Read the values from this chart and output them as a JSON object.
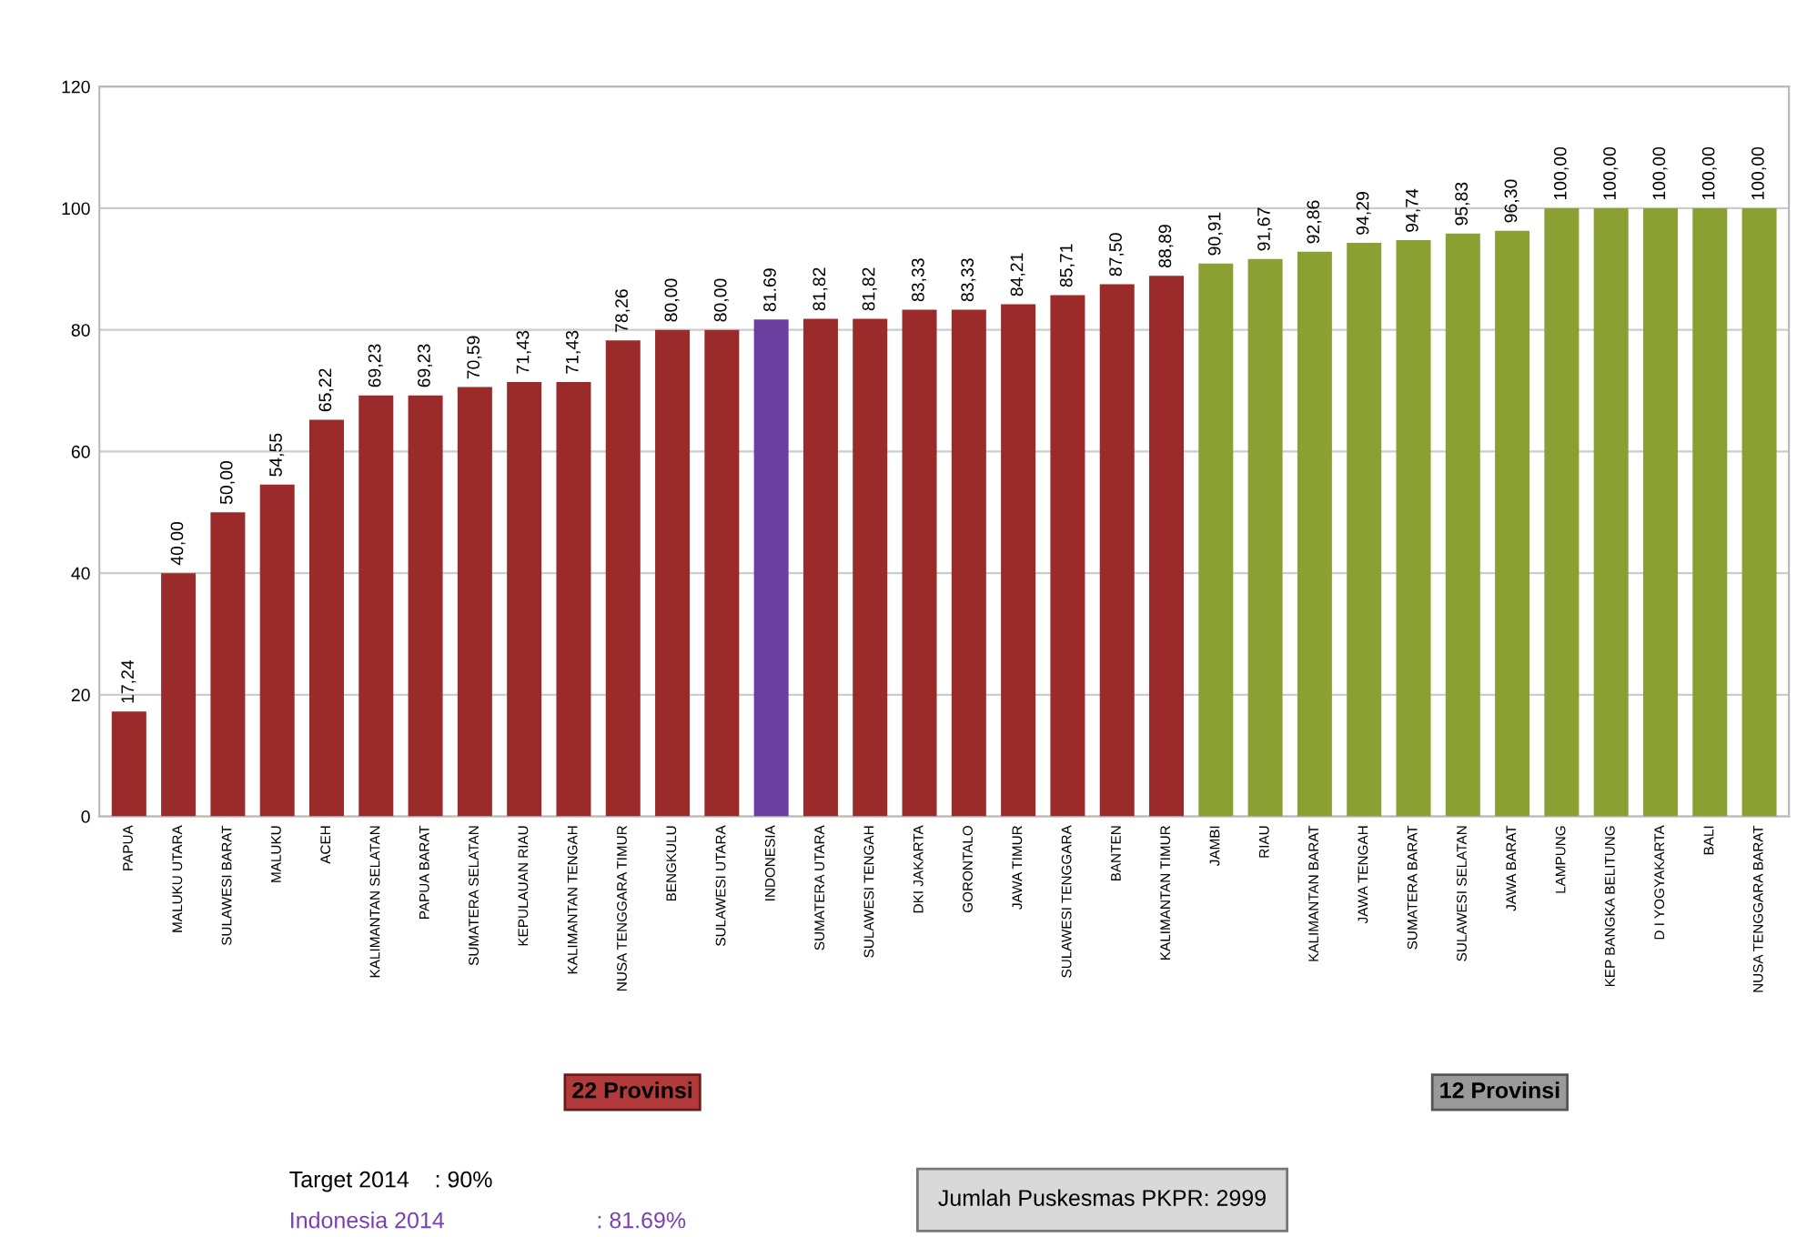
{
  "chart_data": {
    "type": "bar",
    "categories": [
      "PAPUA",
      "MALUKU UTARA",
      "SULAWESI BARAT",
      "MALUKU",
      "ACEH",
      "KALIMANTAN SELATAN",
      "PAPUA BARAT",
      "SUMATERA SELATAN",
      "KEPULAUAN RIAU",
      "KALIMANTAN TENGAH",
      "NUSA TENGGARA TIMUR",
      "BENGKULU",
      "SULAWESI UTARA",
      "INDONESIA",
      "SUMATERA UTARA",
      "SULAWESI TENGAH",
      "DKI JAKARTA",
      "GORONTALO",
      "JAWA TIMUR",
      "SULAWESI TENGGARA",
      "BANTEN",
      "KALIMANTAN TIMUR",
      "JAMBI",
      "RIAU",
      "KALIMANTAN BARAT",
      "JAWA TENGAH",
      "SUMATERA BARAT",
      "SULAWESI SELATAN",
      "JAWA BARAT",
      "LAMPUNG",
      "KEP BANGKA BELITUNG",
      "D I YOGYAKARTA",
      "BALI",
      "NUSA TENGGARA BARAT"
    ],
    "values": [
      17.24,
      40.0,
      50.0,
      54.55,
      65.22,
      69.23,
      69.23,
      70.59,
      71.43,
      71.43,
      78.26,
      80.0,
      80.0,
      81.69,
      81.82,
      81.82,
      83.33,
      83.33,
      84.21,
      85.71,
      87.5,
      88.89,
      90.91,
      91.67,
      92.86,
      94.29,
      94.74,
      95.83,
      96.3,
      100.0,
      100.0,
      100.0,
      100.0,
      100.0
    ],
    "value_labels": [
      "17,24",
      "40,00",
      "50,00",
      "54,55",
      "65,22",
      "69,23",
      "69,23",
      "70,59",
      "71,43",
      "71,43",
      "78,26",
      "80,00",
      "80,00",
      "81.69",
      "81,82",
      "81,82",
      "83,33",
      "83,33",
      "84,21",
      "85,71",
      "87,50",
      "88,89",
      "90,91",
      "91,67",
      "92,86",
      "94,29",
      "94,74",
      "95,83",
      "96,30",
      "100,00",
      "100,00",
      "100,00",
      "100,00",
      "100,00"
    ],
    "colors": [
      "#9b2a2a",
      "#9b2a2a",
      "#9b2a2a",
      "#9b2a2a",
      "#9b2a2a",
      "#9b2a2a",
      "#9b2a2a",
      "#9b2a2a",
      "#9b2a2a",
      "#9b2a2a",
      "#9b2a2a",
      "#9b2a2a",
      "#9b2a2a",
      "#6b3fa0",
      "#9b2a2a",
      "#9b2a2a",
      "#9b2a2a",
      "#9b2a2a",
      "#9b2a2a",
      "#9b2a2a",
      "#9b2a2a",
      "#9b2a2a",
      "#8aa032",
      "#8aa032",
      "#8aa032",
      "#8aa032",
      "#8aa032",
      "#8aa032",
      "#8aa032",
      "#8aa032",
      "#8aa032",
      "#8aa032",
      "#8aa032",
      "#8aa032"
    ],
    "ylim": [
      0,
      120
    ],
    "yticks": [
      0,
      20,
      40,
      60,
      80,
      100,
      120
    ],
    "grid": "y",
    "annotations": [
      "22 Provinsi",
      "12 Provinsi",
      "Target 2014    : 90%",
      "Indonesia 2014                        : 81.69%",
      "Jumlah Puskesmas PKPR: 2999"
    ]
  }
}
